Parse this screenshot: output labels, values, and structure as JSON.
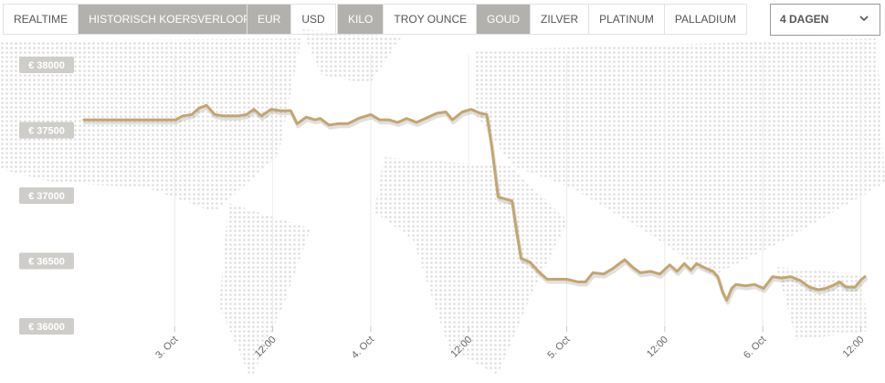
{
  "controls": {
    "groups": [
      [
        {
          "label": "REALTIME",
          "active": false
        },
        {
          "label": "HISTORISCH KOERSVERLOOP",
          "active": true
        }
      ],
      [
        {
          "label": "EUR",
          "active": true
        },
        {
          "label": "USD",
          "active": false
        }
      ],
      [
        {
          "label": "KILO",
          "active": true
        },
        {
          "label": "TROY OUNCE",
          "active": false
        }
      ],
      [
        {
          "label": "GOUD",
          "active": true
        },
        {
          "label": "ZILVER",
          "active": false
        },
        {
          "label": "PLATINUM",
          "active": false
        },
        {
          "label": "PALLADIUM",
          "active": false
        }
      ]
    ],
    "dropdown": "4 DAGEN"
  },
  "chart_data": {
    "type": "line",
    "color": "#c4a56e",
    "grid": true,
    "x": [
      -11.1,
      0.1,
      1.0,
      2.1,
      3.0,
      3.9,
      4.9,
      6.0,
      7.7,
      8.8,
      9.7,
      10.6,
      11.8,
      12.9,
      14.2,
      15.0,
      16.1,
      17.2,
      17.8,
      18.9,
      20.0,
      21.2,
      22.5,
      24.0,
      25.1,
      26.2,
      27.3,
      28.4,
      29.6,
      30.7,
      32.1,
      33.2,
      34.0,
      35.2,
      36.3,
      37.4,
      38.2,
      38.8,
      39.6,
      40.7,
      41.3,
      41.9,
      42.4,
      43.5,
      44.7,
      45.6,
      46.9,
      48.0,
      49.4,
      50.3,
      51.2,
      52.5,
      53.6,
      55.1,
      56.1,
      57.0,
      58.3,
      59.4,
      60.6,
      61.5,
      62.4,
      63.2,
      63.9,
      64.8,
      65.9,
      66.5,
      67.1,
      67.6,
      68.2,
      68.7,
      69.9,
      71.0,
      72.1,
      73.2,
      74.3,
      75.4,
      76.6,
      77.7,
      78.8,
      79.7,
      80.5,
      81.4,
      82.2,
      83.3,
      84.1,
      84.5
    ],
    "values": [
      37580,
      37580,
      37610,
      37620,
      37670,
      37690,
      37620,
      37610,
      37610,
      37620,
      37660,
      37610,
      37660,
      37650,
      37650,
      37550,
      37600,
      37580,
      37590,
      37540,
      37550,
      37550,
      37590,
      37620,
      37580,
      37580,
      37560,
      37590,
      37560,
      37590,
      37630,
      37640,
      37580,
      37640,
      37660,
      37630,
      37620,
      37380,
      36990,
      36970,
      36960,
      36710,
      36520,
      36490,
      36410,
      36360,
      36360,
      36360,
      36340,
      36340,
      36410,
      36400,
      36440,
      36510,
      36450,
      36410,
      36420,
      36400,
      36470,
      36420,
      36480,
      36430,
      36480,
      36450,
      36420,
      36380,
      36260,
      36200,
      36290,
      36320,
      36310,
      36320,
      36290,
      36380,
      36370,
      36380,
      36350,
      36300,
      36280,
      36290,
      36310,
      36340,
      36300,
      36300,
      36360,
      36380
    ],
    "xlim": [
      -11.1,
      85.5
    ],
    "xticks": [
      {
        "value": 0,
        "label": "3. Oct"
      },
      {
        "value": 12,
        "label": "12:00"
      },
      {
        "value": 24,
        "label": "4. Oct"
      },
      {
        "value": 36,
        "label": "12:00"
      },
      {
        "value": 48,
        "label": "5. Oct"
      },
      {
        "value": 60,
        "label": "12:00"
      },
      {
        "value": 72,
        "label": "6. Oct"
      },
      {
        "value": 84,
        "label": "12:00"
      }
    ],
    "ylim": [
      35950,
      38100
    ],
    "yticks": [
      {
        "value": 36000,
        "label": "€ 36000"
      },
      {
        "value": 36500,
        "label": "€ 36500"
      },
      {
        "value": 37000,
        "label": "€ 37000"
      },
      {
        "value": 37500,
        "label": "€ 37500"
      },
      {
        "value": 38000,
        "label": "€ 38000"
      }
    ]
  }
}
